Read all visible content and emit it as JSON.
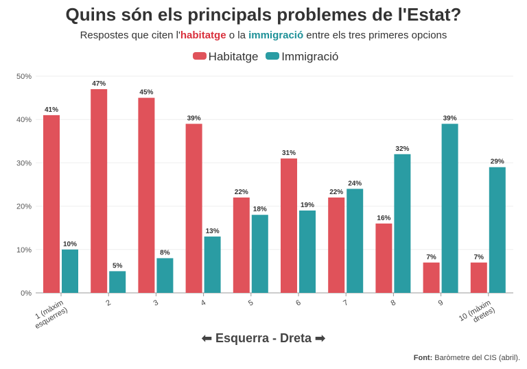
{
  "chart_data": {
    "type": "bar",
    "title": "Quins són els principals problemes de l'Estat?",
    "subtitle": {
      "pre": "Respostes que citen l'",
      "hab": "habitatge",
      "mid": " o la ",
      "imm": "immigració",
      "post": " entre els tres primeres opcions"
    },
    "xlabel": "⬅ Esquerra - Dreta ➡",
    "categories": [
      "1 (màxim|esquerres)",
      "2",
      "3",
      "4",
      "5",
      "6",
      "7",
      "8",
      "9",
      "10 (màxim|dretes)"
    ],
    "series": [
      {
        "name": "Habitatge",
        "color": "#e0525a",
        "values": [
          41,
          47,
          45,
          39,
          22,
          31,
          22,
          16,
          7,
          7
        ]
      },
      {
        "name": "Immigració",
        "color": "#2a9ca3",
        "values": [
          10,
          5,
          8,
          13,
          18,
          19,
          24,
          32,
          39,
          29
        ]
      }
    ],
    "ylim": [
      0,
      50
    ],
    "yticks": [
      "0%",
      "10%",
      "20%",
      "30%",
      "40%",
      "50%"
    ],
    "grid": true,
    "legend": "top-center",
    "source": {
      "label": "Font:",
      "text": " Baròmetre del CIS (abril)."
    }
  }
}
